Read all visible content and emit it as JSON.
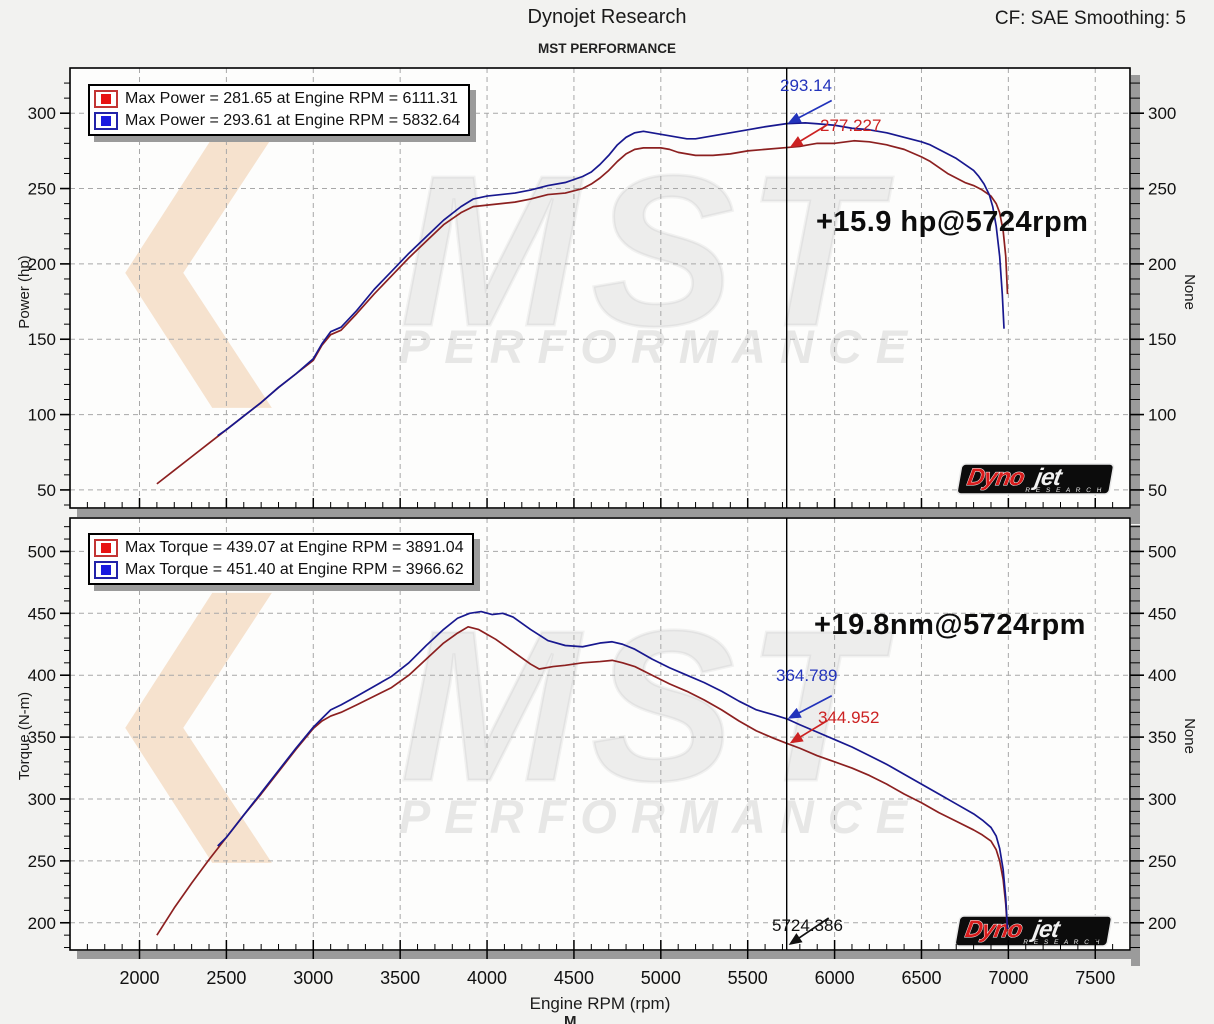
{
  "header": {
    "title": "Dynojet Research",
    "subtitle": "MST PERFORMANCE",
    "cf": "CF: SAE Smoothing: 5"
  },
  "axis": {
    "x_label": "Engine RPM (rpm)",
    "x_ticks": [
      2000,
      2500,
      3000,
      3500,
      4000,
      4500,
      5000,
      5500,
      6000,
      6500,
      7000,
      7500
    ]
  },
  "cursor": {
    "rpm": 5724.386,
    "label": "5724.386"
  },
  "watermark": {
    "chevron": "❮",
    "mst": "MST",
    "performance": "PERFORMANCE"
  },
  "logo": {
    "red": "Dyno",
    "white": "jet",
    "sub": "R E S E A R C H"
  },
  "colors": {
    "series_red": "#8c2020",
    "series_blue": "#18188f",
    "legend_red": "#e81212",
    "legend_blue": "#1a1ae0",
    "legend_red_frame": "#c23434",
    "legend_blue_frame": "#2222a8",
    "annotation_red": "#cc2222",
    "annotation_blue": "#2233bb",
    "annotation_black": "#111111",
    "grid": "#a8a8a8",
    "shadow": "#9b9b9b",
    "plot_bg": "#fdfdfc",
    "border": "#000000"
  },
  "chart_data": [
    {
      "type": "line",
      "ylabel": "Power (hp)",
      "y2label": "None",
      "xlabel": "Engine RPM (rpm)",
      "xlim": [
        1600,
        7700
      ],
      "ylim": [
        38,
        330
      ],
      "yticks": [
        50,
        100,
        150,
        200,
        250,
        300
      ],
      "xticks": [
        2000,
        2500,
        3000,
        3500,
        4000,
        4500,
        5000,
        5500,
        6000,
        6500,
        7000,
        7500
      ],
      "grid": true,
      "legend_position": "top-left",
      "legend": [
        {
          "series": "red",
          "label": "Max Power = 281.65 at Engine RPM = 6111.31"
        },
        {
          "series": "blue",
          "label": "Max Power = 293.61 at Engine RPM = 5832.64"
        }
      ],
      "gain_label": "+15.9 hp@5724rpm",
      "cursor_values": {
        "blue": {
          "label": "293.14",
          "value": 293.14
        },
        "red": {
          "label": "277.227",
          "value": 277.227
        }
      },
      "series": [
        {
          "name": "power-baseline",
          "color": "red",
          "x": [
            2100,
            2200,
            2300,
            2400,
            2500,
            2600,
            2700,
            2800,
            2900,
            3000,
            3050,
            3100,
            3160,
            3250,
            3350,
            3450,
            3550,
            3650,
            3750,
            3850,
            3920,
            4000,
            4080,
            4160,
            4250,
            4350,
            4450,
            4550,
            4600,
            4650,
            4700,
            4750,
            4800,
            4850,
            4900,
            4950,
            5000,
            5050,
            5100,
            5150,
            5200,
            5300,
            5400,
            5500,
            5600,
            5724,
            5800,
            5850,
            5900,
            6000,
            6111,
            6200,
            6300,
            6400,
            6500,
            6550,
            6600,
            6650,
            6700,
            6750,
            6800,
            6850,
            6900,
            6930,
            6950,
            6970,
            6985,
            6995
          ],
          "y": [
            54,
            63,
            72,
            81,
            90,
            99,
            108,
            118,
            127,
            136,
            146,
            153,
            156,
            167,
            180,
            192,
            204,
            215,
            226,
            234,
            238,
            239,
            240,
            241,
            243,
            246,
            247,
            250,
            253,
            257,
            262,
            268,
            273,
            276,
            277,
            277,
            277,
            276,
            274,
            273,
            272,
            272,
            273,
            275,
            276,
            277.2,
            278,
            279,
            280,
            280,
            281.7,
            281,
            279,
            276,
            271,
            268,
            264,
            260,
            257,
            254,
            252,
            249,
            245,
            240,
            234,
            222,
            205,
            180
          ]
        },
        {
          "name": "power-modified",
          "color": "blue",
          "x": [
            2450,
            2500,
            2600,
            2700,
            2800,
            2900,
            3000,
            3050,
            3100,
            3160,
            3250,
            3350,
            3450,
            3550,
            3650,
            3750,
            3850,
            3920,
            4000,
            4080,
            4160,
            4250,
            4350,
            4450,
            4550,
            4600,
            4650,
            4700,
            4750,
            4800,
            4850,
            4900,
            4950,
            5000,
            5050,
            5100,
            5150,
            5200,
            5300,
            5400,
            5500,
            5600,
            5724,
            5832,
            5900,
            6000,
            6100,
            6200,
            6300,
            6400,
            6500,
            6550,
            6600,
            6650,
            6700,
            6750,
            6800,
            6830,
            6860,
            6890,
            6910,
            6930,
            6950,
            6965,
            6975
          ],
          "y": [
            86,
            90,
            99,
            108,
            118,
            127,
            137,
            147,
            155,
            158,
            169,
            183,
            195,
            207,
            218,
            229,
            238,
            243,
            245,
            246,
            247,
            249,
            252,
            254,
            258,
            261,
            266,
            272,
            279,
            284,
            287,
            288,
            287,
            286,
            285,
            284,
            283,
            283,
            285,
            287,
            289,
            291,
            293.1,
            293.6,
            293,
            292,
            290,
            289,
            287,
            284,
            281,
            279,
            276,
            273,
            270,
            266,
            262,
            258,
            253,
            246,
            238,
            225,
            205,
            180,
            157
          ]
        }
      ]
    },
    {
      "type": "line",
      "ylabel": "Torque (N-m)",
      "y2label": "None",
      "xlabel": "Engine RPM (rpm)",
      "xlim": [
        1600,
        7700
      ],
      "ylim": [
        178,
        527
      ],
      "yticks": [
        200,
        250,
        300,
        350,
        400,
        450,
        500
      ],
      "xticks": [
        2000,
        2500,
        3000,
        3500,
        4000,
        4500,
        5000,
        5500,
        6000,
        6500,
        7000,
        7500
      ],
      "grid": true,
      "legend_position": "top-left",
      "legend": [
        {
          "series": "red",
          "label": "Max Torque = 439.07 at Engine RPM = 3891.04"
        },
        {
          "series": "blue",
          "label": "Max Torque = 451.40 at Engine RPM = 3966.62"
        }
      ],
      "gain_label": "+19.8nm@5724rpm",
      "cursor_values": {
        "blue": {
          "label": "364.789",
          "value": 364.789
        },
        "red": {
          "label": "344.952",
          "value": 344.952
        }
      },
      "series": [
        {
          "name": "torque-baseline",
          "color": "red",
          "x": [
            2100,
            2200,
            2300,
            2400,
            2500,
            2600,
            2700,
            2800,
            2900,
            3000,
            3050,
            3100,
            3160,
            3250,
            3350,
            3450,
            3550,
            3650,
            3750,
            3830,
            3891,
            3950,
            4050,
            4150,
            4250,
            4300,
            4380,
            4450,
            4550,
            4650,
            4720,
            4780,
            4850,
            4950,
            5050,
            5150,
            5250,
            5350,
            5450,
            5550,
            5650,
            5724,
            5800,
            5900,
            6000,
            6100,
            6200,
            6300,
            6400,
            6500,
            6600,
            6700,
            6800,
            6850,
            6900,
            6930,
            6950,
            6970,
            6985,
            6995
          ],
          "y": [
            190,
            212,
            232,
            251,
            269,
            287,
            304,
            322,
            340,
            357,
            363,
            367,
            370,
            376,
            383,
            390,
            400,
            413,
            426,
            434,
            439.1,
            437,
            429,
            419,
            409,
            405,
            407,
            408,
            410,
            411,
            412,
            410,
            407,
            400,
            393,
            387,
            380,
            372,
            363,
            355,
            349,
            345,
            341,
            335,
            330,
            325,
            319,
            312,
            304,
            297,
            289,
            282,
            275,
            271,
            266,
            259,
            250,
            235,
            215,
            193
          ]
        },
        {
          "name": "torque-modified",
          "color": "blue",
          "x": [
            2450,
            2500,
            2600,
            2700,
            2800,
            2900,
            3000,
            3050,
            3100,
            3160,
            3250,
            3350,
            3450,
            3550,
            3650,
            3750,
            3830,
            3900,
            3966,
            4030,
            4090,
            4150,
            4250,
            4350,
            4450,
            4550,
            4650,
            4720,
            4780,
            4850,
            4950,
            5050,
            5150,
            5250,
            5350,
            5450,
            5550,
            5650,
            5724,
            5800,
            5900,
            6000,
            6100,
            6200,
            6300,
            6400,
            6500,
            6600,
            6700,
            6800,
            6850,
            6900,
            6930,
            6950,
            6970,
            6985,
            6995
          ],
          "y": [
            262,
            269,
            287,
            305,
            323,
            341,
            358,
            365,
            372,
            376,
            383,
            391,
            399,
            410,
            424,
            437,
            446,
            450,
            451.4,
            449,
            450,
            447,
            437,
            428,
            424,
            423,
            426,
            427,
            425,
            421,
            413,
            406,
            400,
            394,
            387,
            379,
            372,
            368,
            364.8,
            360,
            354,
            348,
            342,
            335,
            328,
            320,
            312,
            304,
            296,
            288,
            283,
            277,
            270,
            260,
            243,
            220,
            195
          ]
        }
      ]
    }
  ]
}
